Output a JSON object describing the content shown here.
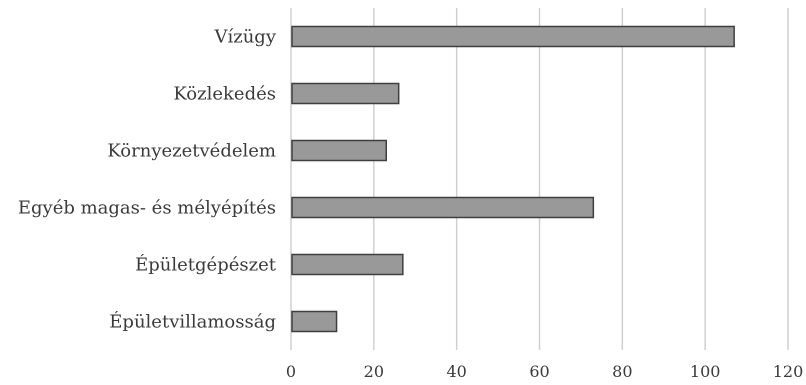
{
  "chart_data": {
    "type": "bar",
    "orientation": "horizontal",
    "title": "",
    "xlabel": "",
    "ylabel": "",
    "categories": [
      "Vízügy",
      "Közlekedés",
      "Környezetvédelem",
      "Egyéb magas- és mélyépítés",
      "Épületgépészet",
      "Épületvillamosság"
    ],
    "values": [
      107,
      26,
      23,
      73,
      27,
      11
    ],
    "xlim": [
      0,
      120
    ],
    "x_ticks": [
      0,
      20,
      40,
      60,
      80,
      100,
      120
    ],
    "grid": "vertical",
    "legend": "none",
    "colors": {
      "bar_fill": "#999999",
      "bar_stroke": "#3f3f3f",
      "grid": "#d0d0d0",
      "text": "#3a3a3a"
    }
  }
}
